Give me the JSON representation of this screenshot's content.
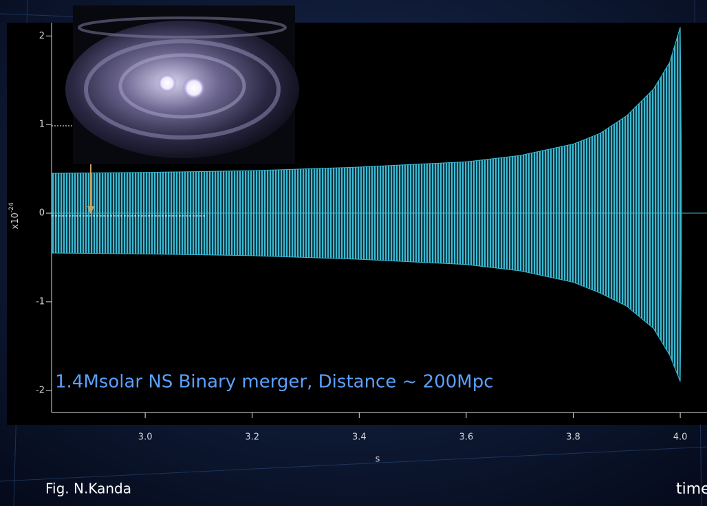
{
  "chart_data": {
    "type": "area",
    "annotation": "1.4Msolar NS Binary merger, Distance ~ 200Mpc",
    "x_label": "s",
    "y_label": "x10",
    "y_label_exponent": "-24",
    "credit": "Fig. N.Kanda",
    "footer": "time",
    "x": [
      2.825,
      3.0,
      3.2,
      3.4,
      3.6,
      3.7,
      3.8,
      3.85,
      3.9,
      3.95,
      3.98,
      4.0,
      4.003,
      4.05
    ],
    "series": [
      {
        "color": "#3ab9d2",
        "values": [
          0.45,
          0.46,
          0.48,
          0.52,
          0.58,
          0.65,
          0.78,
          0.9,
          1.1,
          1.4,
          1.7,
          2.1,
          0,
          0
        ]
      },
      {
        "color": "#3ab9d2",
        "values": [
          -0.45,
          -0.46,
          -0.48,
          -0.52,
          -0.58,
          -0.65,
          -0.78,
          -0.9,
          -1.05,
          -1.3,
          -1.6,
          -1.9,
          0,
          0
        ]
      }
    ],
    "xlim": [
      2.825,
      4.05
    ],
    "ylim": [
      -2.25,
      2.15
    ],
    "xticks": [
      {
        "value": 3,
        "label": "3.0"
      },
      3.2,
      3.4,
      3.6,
      3.8,
      {
        "value": 4,
        "label": "4.0"
      }
    ],
    "yticks": [
      -2,
      -1,
      0,
      1,
      2
    ]
  }
}
